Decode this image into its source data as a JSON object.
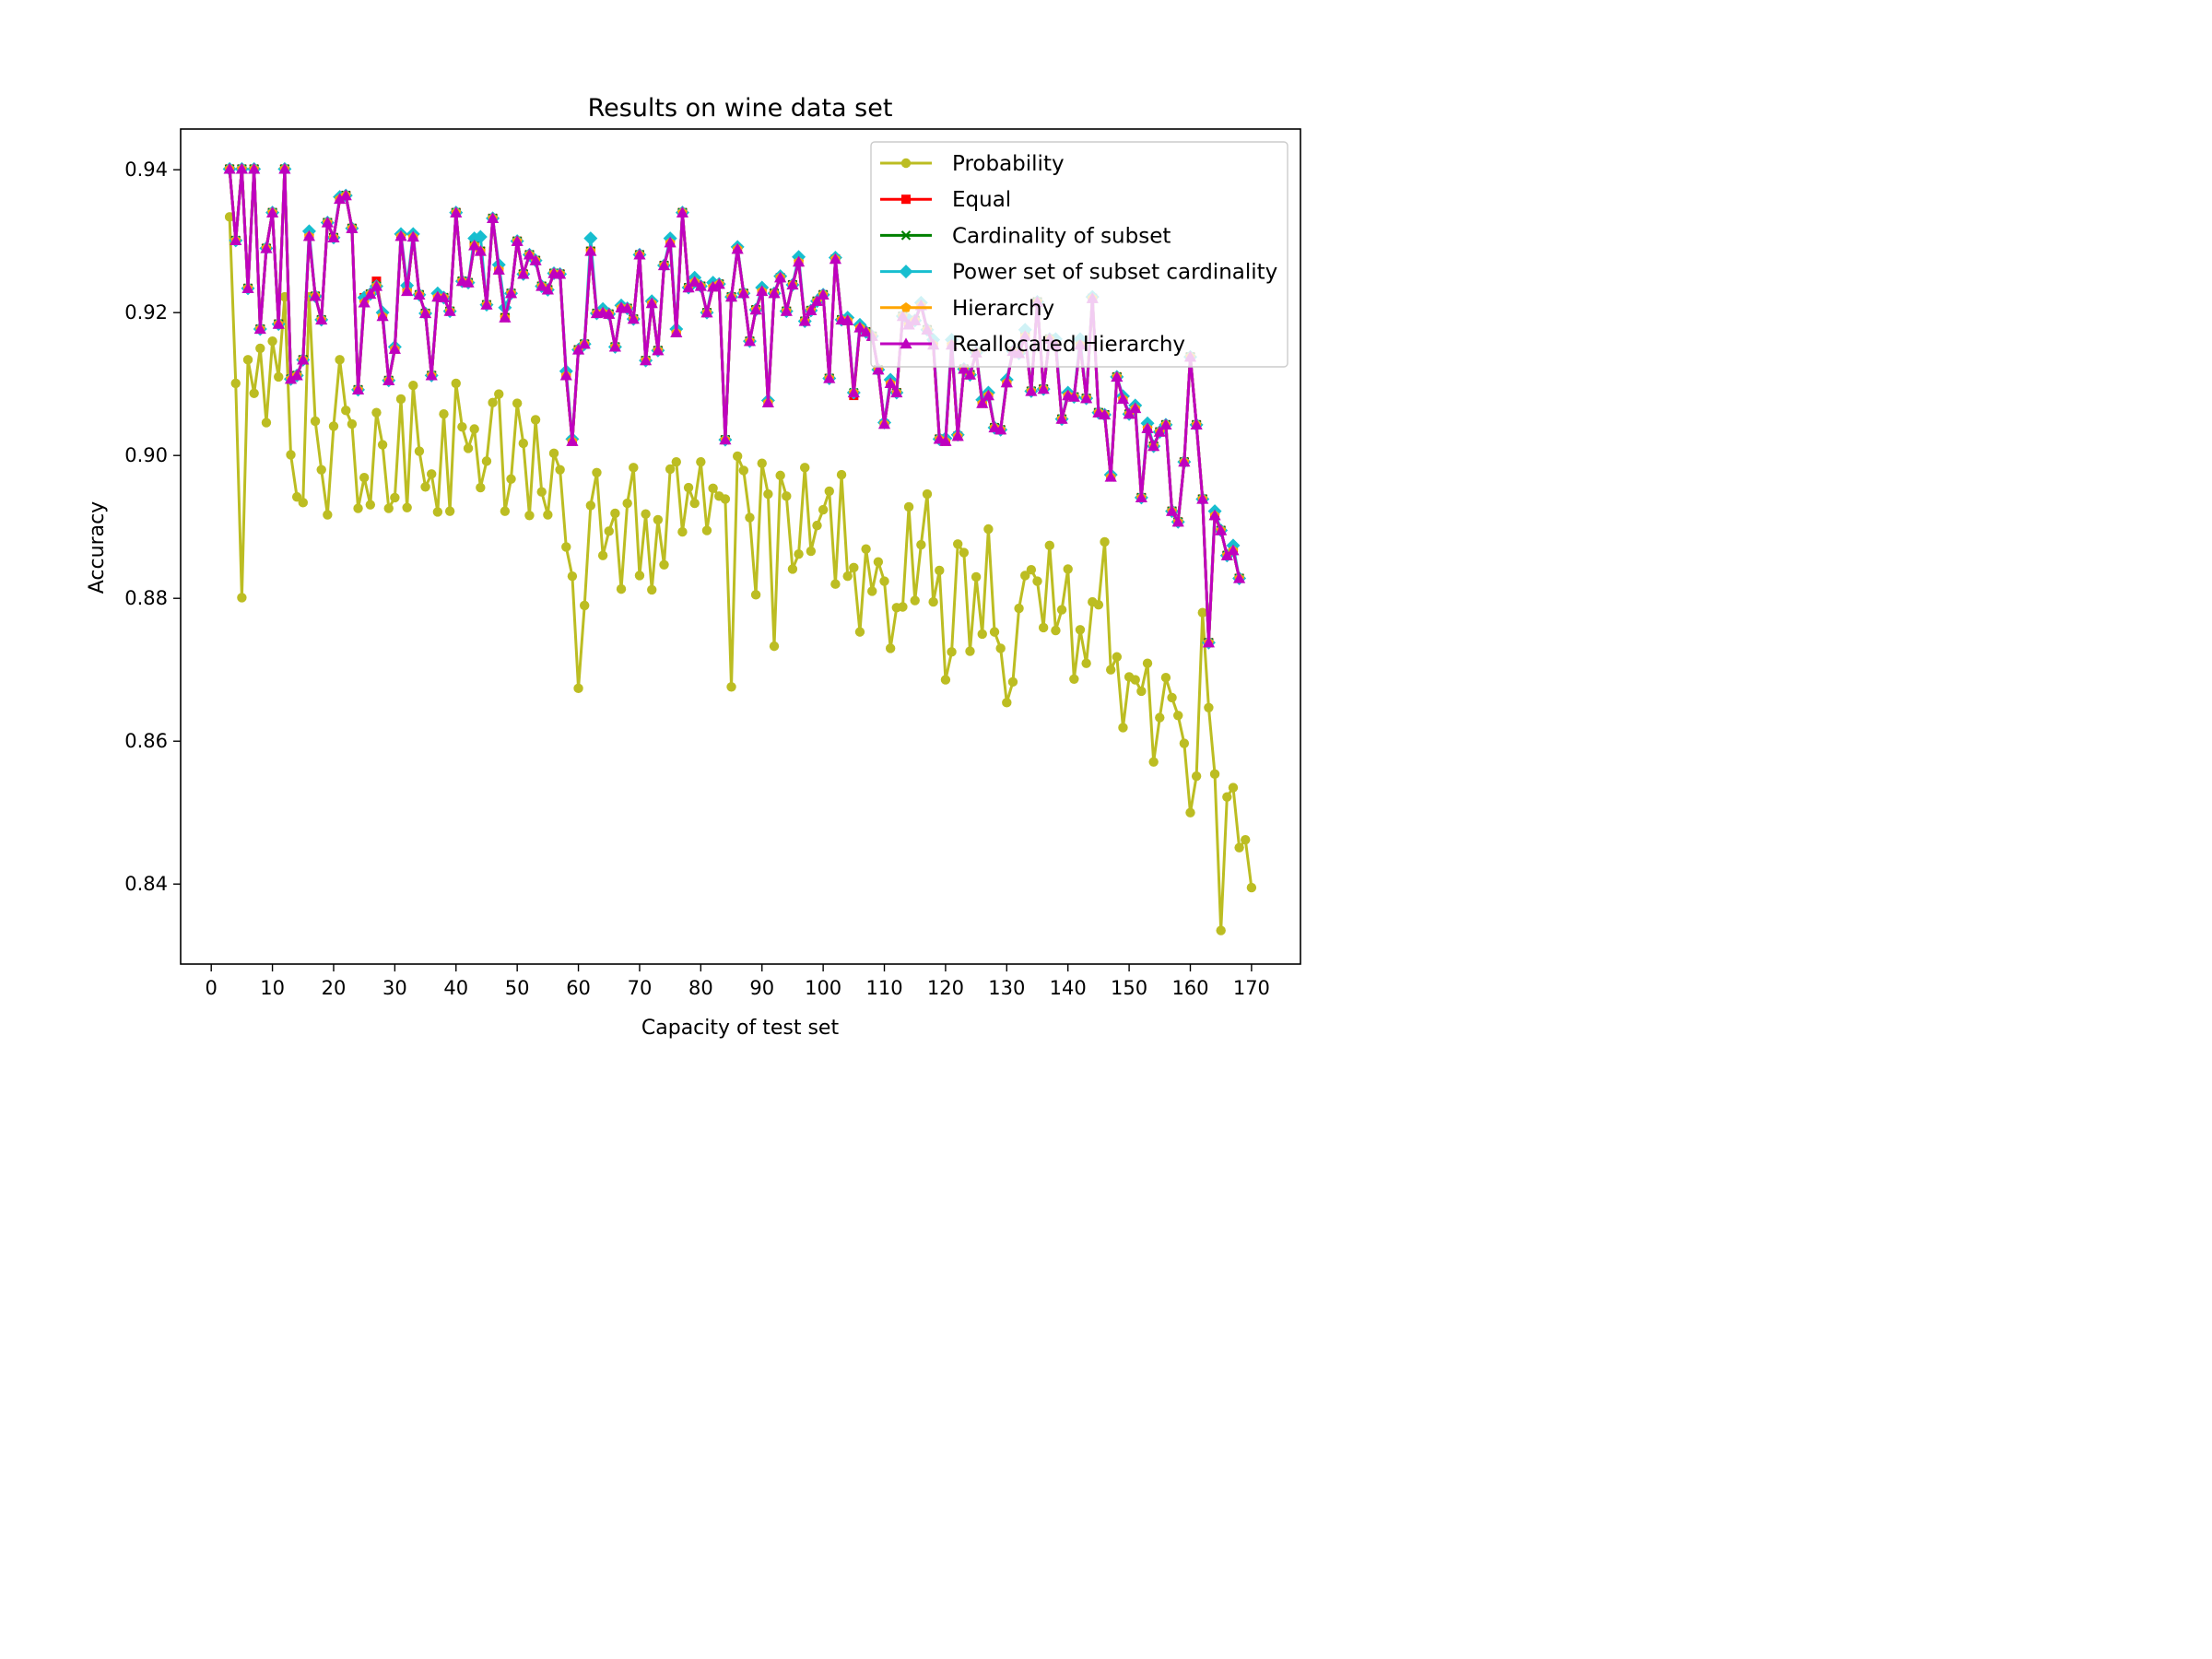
{
  "chart_data": {
    "type": "line",
    "title": "Results on wine data set",
    "xlabel": "Capacity of test set",
    "ylabel": "Accuracy",
    "xlim": [
      -5,
      178
    ],
    "ylim": [
      0.8288,
      0.9457
    ],
    "xticks": [
      0,
      10,
      20,
      30,
      40,
      50,
      60,
      70,
      80,
      90,
      100,
      110,
      120,
      130,
      140,
      150,
      160,
      170
    ],
    "yticks": [
      0.84,
      0.86,
      0.88,
      0.9,
      0.92,
      0.94
    ],
    "ytick_labels": [
      "0.84",
      "0.86",
      "0.88",
      "0.90",
      "0.92",
      "0.94"
    ],
    "legend_position": "top-right",
    "x_start": 3,
    "series": [
      {
        "name": "Probability",
        "color": "#bcbd22",
        "marker": "circle",
        "values": [
          0.9334,
          0.9101,
          0.8801,
          0.9134,
          0.9087,
          0.915,
          0.9046,
          0.916,
          0.911,
          0.9222,
          0.9001,
          0.8942,
          0.8934,
          0.9222,
          0.9048,
          0.898,
          0.8917,
          0.9041,
          0.9134,
          0.9063,
          0.9044,
          0.8926,
          0.8969,
          0.8931,
          0.906,
          0.9015,
          0.8926,
          0.8941,
          0.9079,
          0.8927,
          0.9098,
          0.9006,
          0.8956,
          0.8974,
          0.8921,
          0.9058,
          0.8922,
          0.9101,
          0.904,
          0.901,
          0.9037,
          0.8955,
          0.8992,
          0.9074,
          0.9086,
          0.8922,
          0.8967,
          0.9073,
          0.9017,
          0.8916,
          0.905,
          0.8949,
          0.8917,
          0.9003,
          0.898,
          0.8872,
          0.8831,
          0.8674,
          0.879,
          0.893,
          0.8976,
          0.886,
          0.8894,
          0.8919,
          0.8813,
          0.8933,
          0.8983,
          0.8832,
          0.8918,
          0.8812,
          0.891,
          0.8847,
          0.8981,
          0.8991,
          0.8893,
          0.8955,
          0.8933,
          0.8991,
          0.8895,
          0.8954,
          0.8943,
          0.8939,
          0.8676,
          0.8999,
          0.8979,
          0.8913,
          0.8805,
          0.8989,
          0.8946,
          0.8733,
          0.8972,
          0.8943,
          0.8841,
          0.8862,
          0.8983,
          0.8866,
          0.8902,
          0.8924,
          0.895,
          0.882,
          0.8973,
          0.8831,
          0.8843,
          0.8753,
          0.8869,
          0.881,
          0.8851,
          0.8824,
          0.873,
          0.8787,
          0.8788,
          0.8928,
          0.8797,
          0.8875,
          0.8946,
          0.8795,
          0.8839,
          0.8686,
          0.8725,
          0.8876,
          0.8864,
          0.8726,
          0.883,
          0.875,
          0.8897,
          0.8753,
          0.873,
          0.8654,
          0.8683,
          0.8786,
          0.8832,
          0.884,
          0.8824,
          0.8759,
          0.8874,
          0.8755,
          0.8784,
          0.8841,
          0.8687,
          0.8756,
          0.8709,
          0.8795,
          0.8791,
          0.8879,
          0.87,
          0.8718,
          0.8619,
          0.869,
          0.8686,
          0.867,
          0.8709,
          0.8571,
          0.8633,
          0.8689,
          0.8661,
          0.8636,
          0.8597,
          0.85,
          0.8551,
          0.878,
          0.8647,
          0.8554,
          0.8335,
          0.8522,
          0.8535,
          0.8451,
          0.8462,
          0.8395
        ]
      },
      {
        "name": "Equal",
        "color": "#ff0000",
        "marker": "square",
        "values": [
          0.9401,
          0.9301,
          0.9401,
          0.9234,
          0.9401,
          0.9177,
          0.929,
          0.934,
          0.9184,
          0.9401,
          0.9107,
          0.9112,
          0.9134,
          0.9307,
          0.9223,
          0.919,
          0.9326,
          0.9305,
          0.9359,
          0.9364,
          0.9318,
          0.9092,
          0.9221,
          0.9226,
          0.9244,
          0.9195,
          0.9105,
          0.9149,
          0.9307,
          0.923,
          0.9306,
          0.9225,
          0.9199,
          0.9112,
          0.9222,
          0.9221,
          0.9202,
          0.934,
          0.9244,
          0.9242,
          0.9294,
          0.9286,
          0.9211,
          0.9332,
          0.926,
          0.9193,
          0.9227,
          0.93,
          0.9254,
          0.9281,
          0.9273,
          0.9237,
          0.9232,
          0.9255,
          0.9254,
          0.9112,
          0.902,
          0.9148,
          0.9156,
          0.9286,
          0.9199,
          0.92,
          0.9198,
          0.9152,
          0.9207,
          0.9206,
          0.9191,
          0.9281,
          0.9133,
          0.9213,
          0.9147,
          0.9266,
          0.9298,
          0.9172,
          0.934,
          0.9235,
          0.9243,
          0.9237,
          0.92,
          0.9236,
          0.924,
          0.9022,
          0.9222,
          0.9289,
          0.9227,
          0.916,
          0.9204,
          0.923,
          0.9074,
          0.9227,
          0.9249,
          0.9202,
          0.9239,
          0.9271,
          0.9188,
          0.9203,
          0.9216,
          0.9225,
          0.9108,
          0.9275,
          0.919,
          0.9189,
          0.9084,
          0.9179,
          0.9173,
          0.9167,
          0.912,
          0.9044,
          0.9101,
          0.9088,
          0.9195,
          0.9183,
          0.9189,
          0.921,
          0.9176,
          0.9155,
          0.9023,
          0.902,
          0.9155,
          0.9027,
          0.9121,
          0.9113,
          0.9144,
          0.9073,
          0.9084,
          0.9039,
          0.9036,
          0.9102,
          0.9146,
          0.9143,
          0.9167,
          0.909,
          0.9215,
          0.9093,
          0.9163,
          0.9155,
          0.9051,
          0.9084,
          0.9082,
          0.9155,
          0.908,
          0.922,
          0.906,
          0.9057,
          0.897,
          0.911,
          0.9079,
          0.9058,
          0.9066,
          0.8941,
          0.9038,
          0.9013,
          0.9033,
          0.9043,
          0.8922,
          0.8907,
          0.8991,
          0.9138,
          0.9043,
          0.8939,
          0.8738,
          0.8916,
          0.8895,
          0.886,
          0.8867,
          0.8828
        ]
      },
      {
        "name": "Cardinality of subset",
        "color": "#008000",
        "marker": "x",
        "values": [
          0.9401,
          0.9301,
          0.9401,
          0.9234,
          0.9401,
          0.9177,
          0.929,
          0.934,
          0.9184,
          0.9401,
          0.9107,
          0.9112,
          0.9134,
          0.9307,
          0.9223,
          0.919,
          0.9326,
          0.9305,
          0.9359,
          0.9364,
          0.9318,
          0.9092,
          0.9214,
          0.9226,
          0.9237,
          0.9195,
          0.9105,
          0.9149,
          0.9307,
          0.923,
          0.9306,
          0.9225,
          0.9199,
          0.9112,
          0.9222,
          0.9221,
          0.9202,
          0.934,
          0.9244,
          0.9242,
          0.9294,
          0.9286,
          0.9211,
          0.9332,
          0.926,
          0.9193,
          0.9227,
          0.93,
          0.9254,
          0.9281,
          0.9273,
          0.9237,
          0.9232,
          0.9255,
          0.9254,
          0.9112,
          0.902,
          0.9148,
          0.9156,
          0.9286,
          0.9199,
          0.92,
          0.9198,
          0.9152,
          0.9207,
          0.9206,
          0.9191,
          0.9281,
          0.9133,
          0.9213,
          0.9147,
          0.9266,
          0.9298,
          0.9172,
          0.934,
          0.9235,
          0.9243,
          0.9237,
          0.92,
          0.9236,
          0.924,
          0.9022,
          0.9222,
          0.9289,
          0.9227,
          0.916,
          0.9204,
          0.923,
          0.9074,
          0.9227,
          0.9249,
          0.9202,
          0.9239,
          0.9271,
          0.9188,
          0.9203,
          0.9216,
          0.9225,
          0.9108,
          0.9275,
          0.919,
          0.9189,
          0.9088,
          0.9179,
          0.9173,
          0.9167,
          0.912,
          0.9044,
          0.9101,
          0.9088,
          0.9195,
          0.9183,
          0.9189,
          0.921,
          0.9176,
          0.9155,
          0.9023,
          0.902,
          0.9155,
          0.9027,
          0.9121,
          0.9113,
          0.9144,
          0.9073,
          0.9084,
          0.9039,
          0.9036,
          0.9102,
          0.9146,
          0.9143,
          0.9167,
          0.909,
          0.9215,
          0.9093,
          0.9163,
          0.9155,
          0.9051,
          0.9084,
          0.9082,
          0.9155,
          0.908,
          0.922,
          0.906,
          0.9057,
          0.897,
          0.911,
          0.9079,
          0.9058,
          0.9066,
          0.8941,
          0.9038,
          0.9013,
          0.9033,
          0.9043,
          0.8922,
          0.8907,
          0.8991,
          0.9138,
          0.9043,
          0.8939,
          0.8738,
          0.8916,
          0.8895,
          0.886,
          0.8867,
          0.8828
        ]
      },
      {
        "name": "Power set of subset cardinality",
        "color": "#17becf",
        "marker": "diamond",
        "values": [
          0.9401,
          0.9301,
          0.9401,
          0.9234,
          0.9401,
          0.9177,
          0.929,
          0.934,
          0.9184,
          0.9401,
          0.9107,
          0.9112,
          0.9134,
          0.9314,
          0.9223,
          0.919,
          0.9326,
          0.9305,
          0.9362,
          0.9364,
          0.9318,
          0.9092,
          0.9221,
          0.9226,
          0.9237,
          0.92,
          0.9105,
          0.9152,
          0.931,
          0.9238,
          0.931,
          0.9225,
          0.9199,
          0.9112,
          0.9227,
          0.9221,
          0.9202,
          0.934,
          0.9244,
          0.9242,
          0.9304,
          0.9306,
          0.9211,
          0.9332,
          0.9267,
          0.9207,
          0.9227,
          0.93,
          0.9254,
          0.9281,
          0.9273,
          0.9237,
          0.9232,
          0.9255,
          0.9254,
          0.9118,
          0.9023,
          0.9148,
          0.9156,
          0.9304,
          0.9199,
          0.9205,
          0.9198,
          0.9152,
          0.921,
          0.9206,
          0.9191,
          0.9281,
          0.9133,
          0.9216,
          0.9147,
          0.9266,
          0.9304,
          0.9177,
          0.934,
          0.9235,
          0.9249,
          0.9237,
          0.92,
          0.9242,
          0.924,
          0.9022,
          0.9222,
          0.9292,
          0.9227,
          0.916,
          0.9204,
          0.9235,
          0.9077,
          0.9227,
          0.9251,
          0.9202,
          0.9239,
          0.9278,
          0.9188,
          0.9203,
          0.9216,
          0.9225,
          0.9108,
          0.9277,
          0.919,
          0.9193,
          0.9088,
          0.9183,
          0.9173,
          0.9167,
          0.912,
          0.9046,
          0.9106,
          0.9088,
          0.9195,
          0.919,
          0.9189,
          0.9214,
          0.9176,
          0.9162,
          0.9023,
          0.9024,
          0.9162,
          0.9029,
          0.9121,
          0.9113,
          0.9144,
          0.9078,
          0.9088,
          0.9039,
          0.9036,
          0.9106,
          0.9146,
          0.9143,
          0.9176,
          0.909,
          0.9215,
          0.9093,
          0.9163,
          0.9163,
          0.9051,
          0.9088,
          0.9082,
          0.9163,
          0.908,
          0.9222,
          0.906,
          0.9057,
          0.8973,
          0.911,
          0.9083,
          0.9058,
          0.907,
          0.8941,
          0.9045,
          0.9013,
          0.9033,
          0.9043,
          0.8922,
          0.8907,
          0.8991,
          0.9138,
          0.9043,
          0.8939,
          0.8738,
          0.8922,
          0.8895,
          0.886,
          0.8874,
          0.8828
        ]
      },
      {
        "name": "Hierarchy",
        "color": "#ffa500",
        "marker": "pentagon",
        "values": [
          0.9401,
          0.9301,
          0.9401,
          0.9234,
          0.9401,
          0.9177,
          0.929,
          0.934,
          0.9184,
          0.9401,
          0.9107,
          0.9112,
          0.9134,
          0.9307,
          0.9223,
          0.919,
          0.9326,
          0.9305,
          0.9359,
          0.9364,
          0.9318,
          0.9092,
          0.9214,
          0.9226,
          0.9237,
          0.9195,
          0.9105,
          0.9149,
          0.9307,
          0.923,
          0.9306,
          0.9225,
          0.9199,
          0.9112,
          0.9222,
          0.9221,
          0.9202,
          0.934,
          0.9244,
          0.9242,
          0.9294,
          0.9286,
          0.9211,
          0.9332,
          0.926,
          0.9193,
          0.9227,
          0.93,
          0.9254,
          0.9281,
          0.9273,
          0.9237,
          0.9232,
          0.9255,
          0.9254,
          0.9112,
          0.902,
          0.9148,
          0.9156,
          0.9286,
          0.9199,
          0.92,
          0.9198,
          0.9152,
          0.9207,
          0.9206,
          0.9191,
          0.9281,
          0.9133,
          0.9213,
          0.9147,
          0.9266,
          0.9298,
          0.9172,
          0.934,
          0.9235,
          0.9243,
          0.9237,
          0.92,
          0.9236,
          0.924,
          0.9022,
          0.9222,
          0.9289,
          0.9227,
          0.916,
          0.9204,
          0.923,
          0.9074,
          0.9227,
          0.9249,
          0.9202,
          0.9239,
          0.9271,
          0.9188,
          0.9203,
          0.9216,
          0.9225,
          0.9108,
          0.9275,
          0.919,
          0.9189,
          0.9088,
          0.9179,
          0.9173,
          0.9167,
          0.912,
          0.9044,
          0.9101,
          0.9088,
          0.9195,
          0.9183,
          0.9189,
          0.921,
          0.9176,
          0.9155,
          0.9023,
          0.902,
          0.9155,
          0.9027,
          0.9121,
          0.9113,
          0.9144,
          0.9073,
          0.9084,
          0.9039,
          0.9036,
          0.9102,
          0.9146,
          0.9143,
          0.9167,
          0.909,
          0.9215,
          0.9093,
          0.9163,
          0.9155,
          0.9051,
          0.9084,
          0.9082,
          0.9155,
          0.908,
          0.922,
          0.906,
          0.9057,
          0.897,
          0.911,
          0.9079,
          0.9058,
          0.9066,
          0.8941,
          0.9038,
          0.9013,
          0.9033,
          0.9043,
          0.8922,
          0.8907,
          0.8991,
          0.9138,
          0.9043,
          0.8939,
          0.8738,
          0.8916,
          0.8895,
          0.886,
          0.8867,
          0.8828
        ]
      },
      {
        "name": "Reallocated Hierarchy",
        "color": "#bf00bf",
        "marker": "triangle",
        "values": [
          0.9401,
          0.9301,
          0.9401,
          0.9234,
          0.9401,
          0.9177,
          0.929,
          0.934,
          0.9184,
          0.9401,
          0.9107,
          0.9112,
          0.9134,
          0.9307,
          0.9223,
          0.919,
          0.9326,
          0.9305,
          0.9359,
          0.9364,
          0.9318,
          0.9092,
          0.9214,
          0.9226,
          0.9237,
          0.9195,
          0.9105,
          0.9149,
          0.9307,
          0.923,
          0.9306,
          0.9225,
          0.9199,
          0.9112,
          0.9222,
          0.9221,
          0.9202,
          0.934,
          0.9244,
          0.9242,
          0.9294,
          0.9286,
          0.9211,
          0.9332,
          0.926,
          0.9193,
          0.9227,
          0.93,
          0.9254,
          0.9281,
          0.9273,
          0.9237,
          0.9232,
          0.9255,
          0.9254,
          0.9112,
          0.902,
          0.9148,
          0.9156,
          0.9286,
          0.9199,
          0.92,
          0.9198,
          0.9152,
          0.9207,
          0.9206,
          0.9191,
          0.9281,
          0.9133,
          0.9213,
          0.9147,
          0.9266,
          0.9298,
          0.9172,
          0.934,
          0.9235,
          0.9243,
          0.9237,
          0.92,
          0.9236,
          0.924,
          0.9022,
          0.9222,
          0.9289,
          0.9227,
          0.916,
          0.9204,
          0.923,
          0.9074,
          0.9227,
          0.9249,
          0.9202,
          0.9239,
          0.9271,
          0.9188,
          0.9203,
          0.9216,
          0.9225,
          0.9108,
          0.9275,
          0.919,
          0.9189,
          0.9088,
          0.9179,
          0.9173,
          0.9167,
          0.912,
          0.9044,
          0.9101,
          0.9088,
          0.9195,
          0.9183,
          0.9189,
          0.921,
          0.9176,
          0.9155,
          0.9023,
          0.902,
          0.9155,
          0.9027,
          0.9121,
          0.9113,
          0.9144,
          0.9073,
          0.9084,
          0.9039,
          0.9036,
          0.9102,
          0.9146,
          0.9143,
          0.9167,
          0.909,
          0.9215,
          0.9093,
          0.9163,
          0.9155,
          0.9051,
          0.9084,
          0.9082,
          0.9155,
          0.908,
          0.922,
          0.906,
          0.9057,
          0.897,
          0.911,
          0.9079,
          0.9058,
          0.9066,
          0.8941,
          0.9038,
          0.9013,
          0.9033,
          0.9043,
          0.8922,
          0.8907,
          0.8991,
          0.9138,
          0.9043,
          0.8939,
          0.8738,
          0.8916,
          0.8895,
          0.886,
          0.8867,
          0.8828
        ]
      }
    ]
  }
}
